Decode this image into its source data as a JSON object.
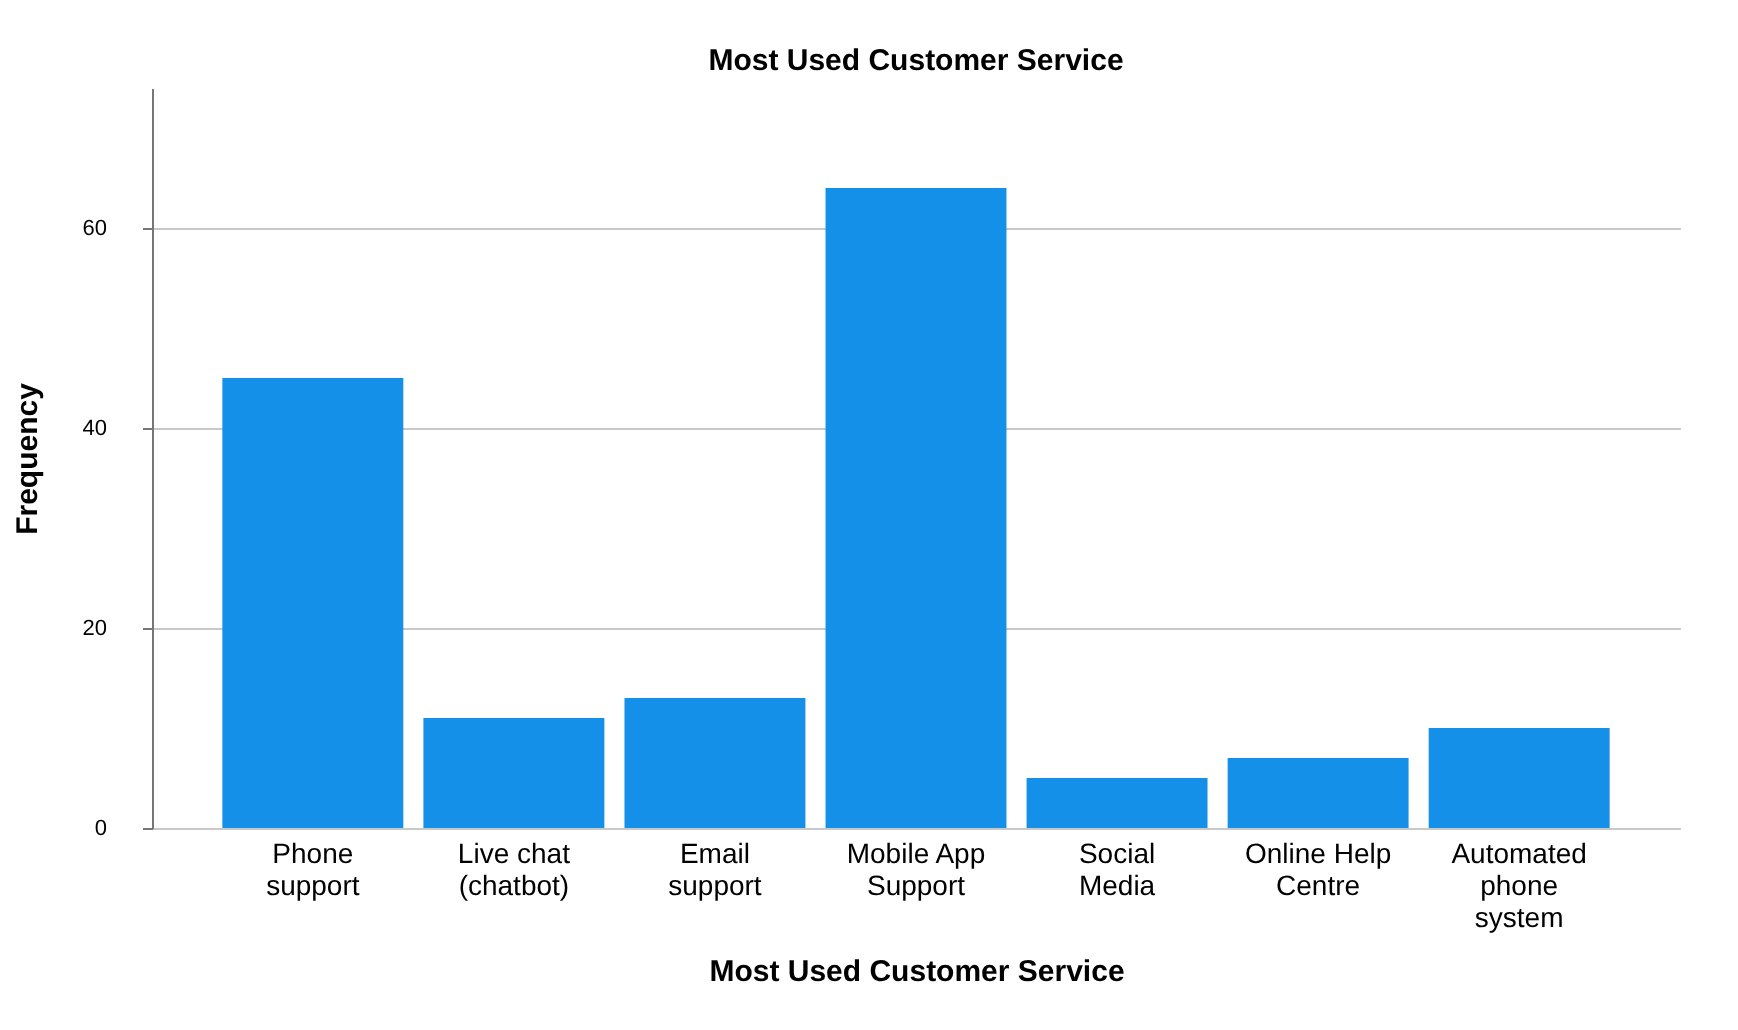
{
  "chart_data": {
    "type": "bar",
    "title": "Most Used Customer Service",
    "xlabel": "Most Used Customer Service",
    "ylabel": "Frequency",
    "categories": [
      "Phone support",
      "Live chat (chatbot)",
      "Email support",
      "Mobile App Support",
      "Social Media",
      "Online Help Centre",
      "Automated phone system"
    ],
    "values": [
      45,
      11,
      13,
      64,
      5,
      7,
      10
    ],
    "color": "#1490e8",
    "ylim": [
      0,
      74
    ],
    "yticks": [
      0,
      20,
      40,
      60
    ],
    "grid": "y"
  }
}
